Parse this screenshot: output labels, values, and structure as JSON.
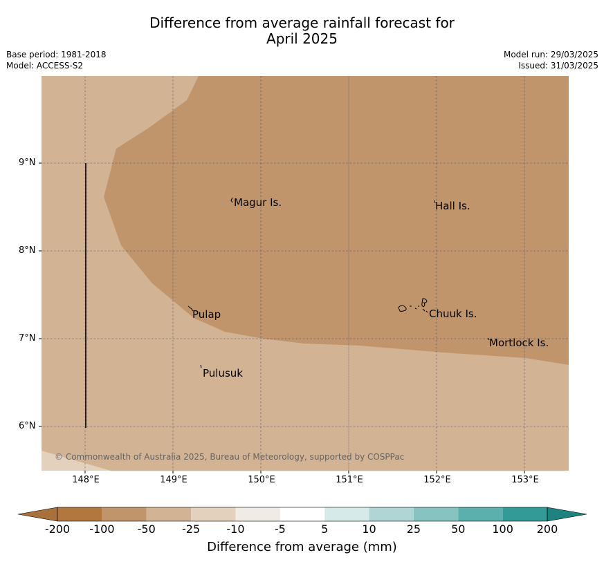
{
  "title_line1": "Difference from average rainfall forecast for",
  "title_line2": "April 2025",
  "meta_left": {
    "base_period": "Base period: 1981-2018",
    "model": "Model: ACCESS-S2"
  },
  "meta_right": {
    "model_run": "Model run: 29/03/2025",
    "issued": "Issued: 31/03/2025"
  },
  "lat_labels": [
    "9°N",
    "8°N",
    "7°N",
    "6°N"
  ],
  "lon_labels": [
    "148°E",
    "149°E",
    "150°E",
    "151°E",
    "152°E",
    "153°E"
  ],
  "places": [
    "Magur Is.",
    "Hall Is.",
    "Pulap",
    "Chuuk Is.",
    "Mortlock Is.",
    "Pulusuk"
  ],
  "copyright": "© Commonwealth of Australia 2025, Bureau of Meteorology, supported by COSPPac",
  "colorbar": {
    "ticks": [
      "-200",
      "-100",
      "-50",
      "-25",
      "-10",
      "-5",
      "5",
      "10",
      "25",
      "50",
      "100",
      "200"
    ],
    "label": "Difference from average (mm)",
    "colors": [
      "#a8703a",
      "#b1773f",
      "#c0956b",
      "#d2b394",
      "#e3d0bd",
      "#f0ebe4",
      "#ffffff",
      "#d6eae9",
      "#afd6d5",
      "#87c3c1",
      "#5bb0ad",
      "#339a97",
      "#1e8280"
    ]
  },
  "map_colors": {
    "light": "#d2b394",
    "dark": "#c0956b",
    "lighter": "#e3d0bd"
  }
}
